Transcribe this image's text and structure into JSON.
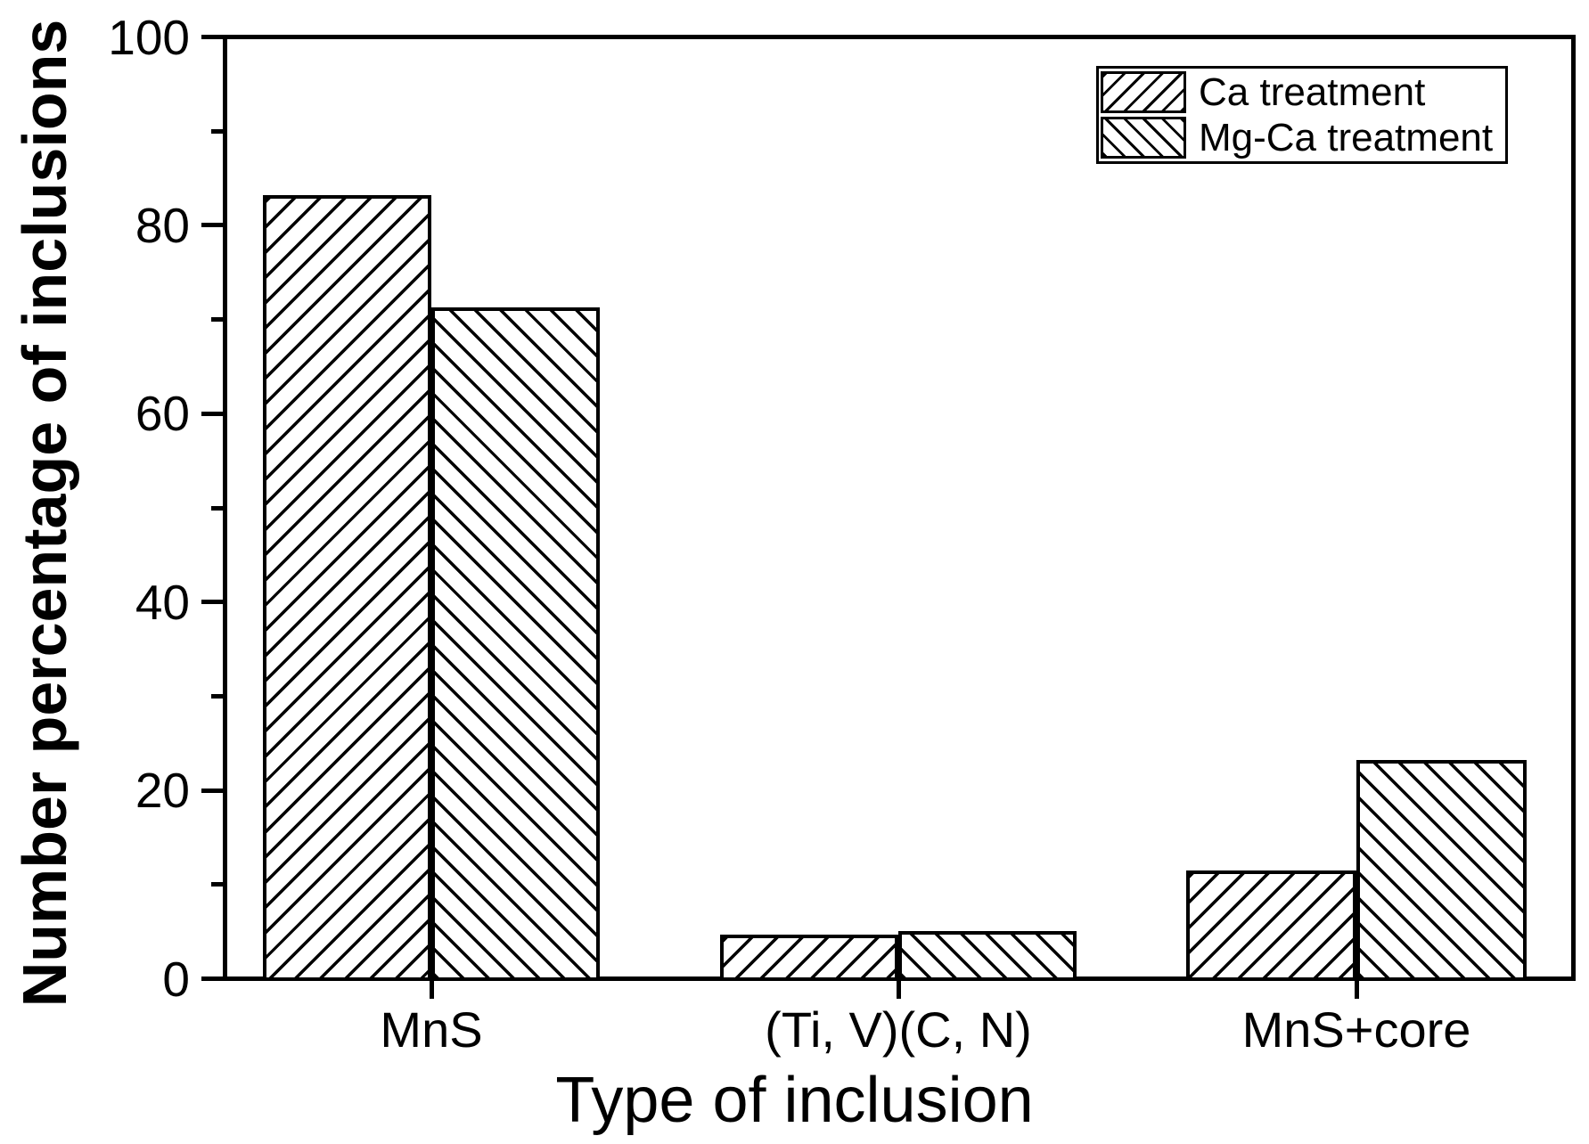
{
  "chart_data": {
    "type": "bar",
    "title": "",
    "categories": [
      "MnS",
      "(Ti, V)(C, N)",
      "MnS+core"
    ],
    "series": [
      {
        "name": "Ca treatment",
        "hatch": "/",
        "values": [
          83.2,
          4.7,
          11.5
        ]
      },
      {
        "name": "Mg-Ca treatment",
        "hatch": "\\",
        "values": [
          71.3,
          5.1,
          23.2
        ]
      }
    ],
    "xlabel": "Type of inclusion",
    "ylabel": "Number percentage of inclusions",
    "ylim": [
      0,
      100
    ],
    "yticks": [
      0,
      20,
      40,
      60,
      80,
      100
    ],
    "minor_yticks": [
      10,
      30,
      50,
      70,
      90
    ],
    "grid": false,
    "legend_position": "top-right",
    "bar_fill": "#ffffff",
    "line_color": "#000000",
    "background_color": "#ffffff"
  }
}
